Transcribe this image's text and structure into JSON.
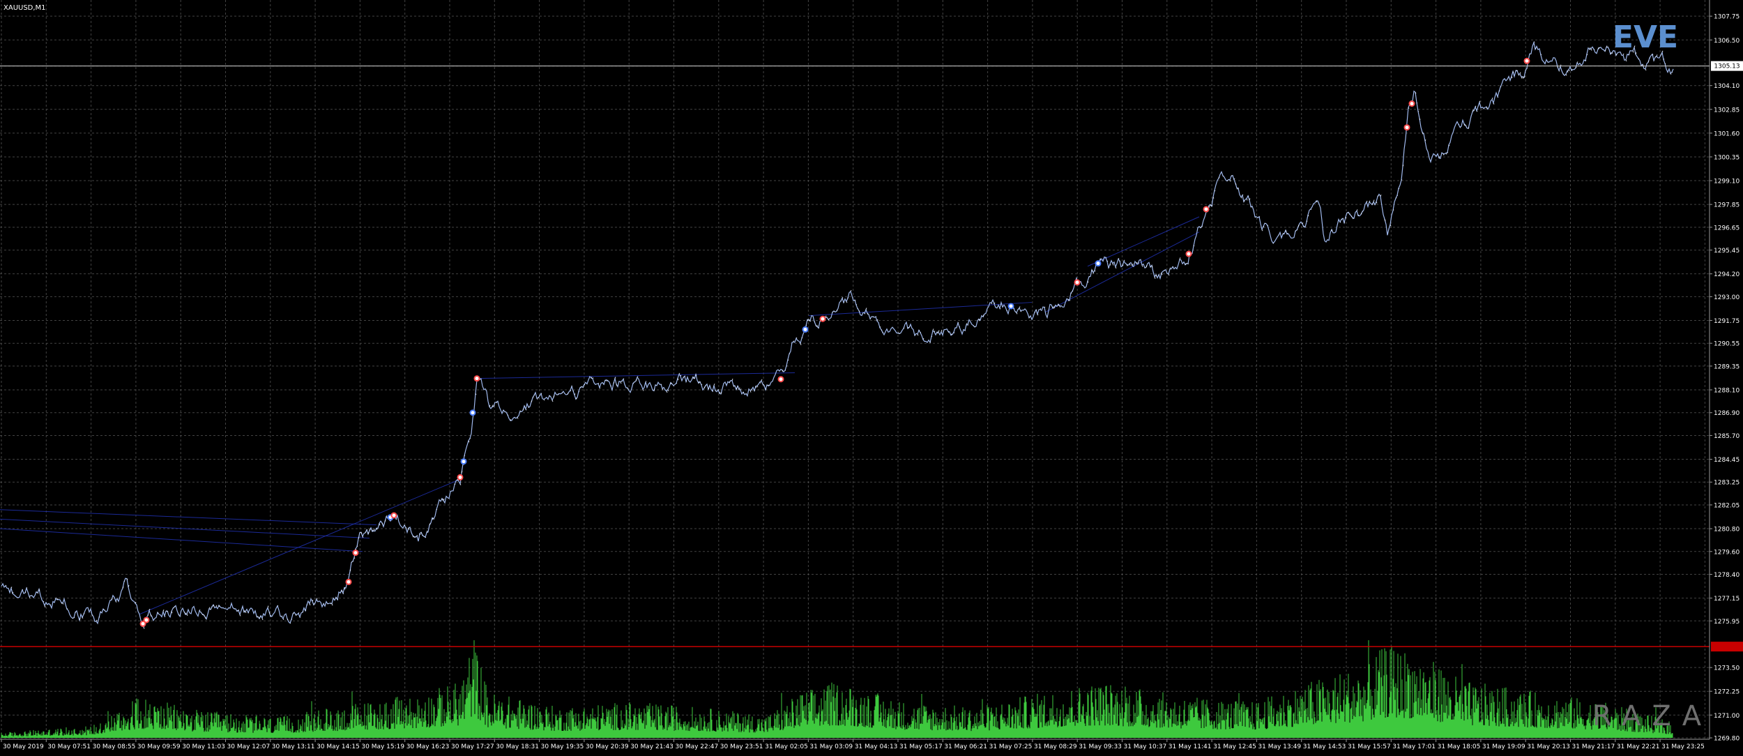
{
  "chart_data": {
    "type": "line",
    "title": "XAUUSD,M1",
    "watermark_top": "EVE",
    "watermark_bottom": "RAZA",
    "current_price_label": "1305.13",
    "ask_line_price": 1305.13,
    "level_line_price": 1274.6,
    "y_range": [
      1269.8,
      1308.6
    ],
    "y_ticks": [
      "1307.75",
      "1306.50",
      "1305.13",
      "1304.10",
      "1302.85",
      "1301.60",
      "1300.35",
      "1299.10",
      "1297.85",
      "1296.65",
      "1295.45",
      "1294.20",
      "1293.00",
      "1291.75",
      "1290.55",
      "1289.35",
      "1288.10",
      "1286.90",
      "1285.70",
      "1284.45",
      "1283.25",
      "1282.05",
      "1280.80",
      "1279.60",
      "1278.40",
      "1277.15",
      "1275.95",
      "1273.50",
      "1272.25",
      "1271.00",
      "1269.80"
    ],
    "x_labels": [
      "30 May 2019",
      "30 May 07:51",
      "30 May 08:55",
      "30 May 09:59",
      "30 May 11:03",
      "30 May 12:07",
      "30 May 13:11",
      "30 May 14:15",
      "30 May 15:19",
      "30 May 16:23",
      "30 May 17:27",
      "30 May 18:31",
      "30 May 19:35",
      "30 May 20:39",
      "30 May 21:43",
      "30 May 22:47",
      "30 May 23:51",
      "31 May 02:05",
      "31 May 03:09",
      "31 May 04:13",
      "31 May 05:17",
      "31 May 06:21",
      "31 May 07:25",
      "31 May 08:29",
      "31 May 09:33",
      "31 May 10:37",
      "31 May 11:41",
      "31 May 12:45",
      "31 May 13:49",
      "31 May 14:53",
      "31 May 15:57",
      "31 May 17:01",
      "31 May 18:05",
      "31 May 19:09",
      "31 May 20:13",
      "31 May 21:17",
      "31 May 22:21",
      "31 May 23:25"
    ],
    "price_anchors": [
      [
        0,
        1277.6
      ],
      [
        80,
        1277.1
      ],
      [
        140,
        1276.0
      ],
      [
        180,
        1277.8
      ],
      [
        205,
        1275.8
      ],
      [
        215,
        1276.2
      ],
      [
        260,
        1276.4
      ],
      [
        320,
        1276.8
      ],
      [
        380,
        1276.2
      ],
      [
        420,
        1276.3
      ],
      [
        470,
        1277.0
      ],
      [
        500,
        1278.0
      ],
      [
        515,
        1280.3
      ],
      [
        540,
        1281.0
      ],
      [
        570,
        1281.6
      ],
      [
        600,
        1280.3
      ],
      [
        630,
        1282.0
      ],
      [
        660,
        1283.5
      ],
      [
        675,
        1286.0
      ],
      [
        685,
        1289.0
      ],
      [
        700,
        1287.5
      ],
      [
        740,
        1287.0
      ],
      [
        780,
        1287.4
      ],
      [
        820,
        1287.9
      ],
      [
        860,
        1288.4
      ],
      [
        900,
        1288.6
      ],
      [
        940,
        1288.4
      ],
      [
        980,
        1288.8
      ],
      [
        1020,
        1288.2
      ],
      [
        1060,
        1288.4
      ],
      [
        1100,
        1288.5
      ],
      [
        1125,
        1288.7
      ],
      [
        1140,
        1290.6
      ],
      [
        1160,
        1291.5
      ],
      [
        1190,
        1292.0
      ],
      [
        1220,
        1292.8
      ],
      [
        1250,
        1292.0
      ],
      [
        1290,
        1291.2
      ],
      [
        1330,
        1290.9
      ],
      [
        1360,
        1291.3
      ],
      [
        1400,
        1291.8
      ],
      [
        1440,
        1292.6
      ],
      [
        1470,
        1292.3
      ],
      [
        1500,
        1292.0
      ],
      [
        1530,
        1293.5
      ],
      [
        1560,
        1294.0
      ],
      [
        1580,
        1295.0
      ],
      [
        1600,
        1294.5
      ],
      [
        1630,
        1294.8
      ],
      [
        1660,
        1294.0
      ],
      [
        1690,
        1294.5
      ],
      [
        1710,
        1295.5
      ],
      [
        1730,
        1297.6
      ],
      [
        1750,
        1299.0
      ],
      [
        1770,
        1299.0
      ],
      [
        1790,
        1298.0
      ],
      [
        1810,
        1296.5
      ],
      [
        1840,
        1296.0
      ],
      [
        1870,
        1297.0
      ],
      [
        1890,
        1298.3
      ],
      [
        1900,
        1296.0
      ],
      [
        1920,
        1297.0
      ],
      [
        1950,
        1297.5
      ],
      [
        1980,
        1298.0
      ],
      [
        1990,
        1296.0
      ],
      [
        2010,
        1299.5
      ],
      [
        2020,
        1302.5
      ],
      [
        2030,
        1303.8
      ],
      [
        2045,
        1301.0
      ],
      [
        2065,
        1300.0
      ],
      [
        2090,
        1301.8
      ],
      [
        2120,
        1302.6
      ],
      [
        2150,
        1303.7
      ],
      [
        2170,
        1304.5
      ],
      [
        2185,
        1305.0
      ],
      [
        2200,
        1306.2
      ],
      [
        2220,
        1305.3
      ],
      [
        2240,
        1305.0
      ],
      [
        2260,
        1305.3
      ],
      [
        2280,
        1306.3
      ],
      [
        2300,
        1305.9
      ],
      [
        2320,
        1306.0
      ],
      [
        2340,
        1305.7
      ],
      [
        2360,
        1305.5
      ],
      [
        2380,
        1305.3
      ],
      [
        2400,
        1305.1
      ]
    ],
    "volume_anchors": [
      [
        0,
        0.05
      ],
      [
        130,
        0.12
      ],
      [
        200,
        0.4
      ],
      [
        300,
        0.25
      ],
      [
        400,
        0.2
      ],
      [
        520,
        0.35
      ],
      [
        600,
        0.42
      ],
      [
        660,
        0.55
      ],
      [
        680,
        1.0
      ],
      [
        700,
        0.45
      ],
      [
        800,
        0.3
      ],
      [
        900,
        0.35
      ],
      [
        1000,
        0.3
      ],
      [
        1100,
        0.22
      ],
      [
        1150,
        0.45
      ],
      [
        1200,
        0.55
      ],
      [
        1300,
        0.35
      ],
      [
        1400,
        0.3
      ],
      [
        1500,
        0.45
      ],
      [
        1580,
        0.55
      ],
      [
        1700,
        0.4
      ],
      [
        1800,
        0.35
      ],
      [
        1900,
        0.6
      ],
      [
        1950,
        0.7
      ],
      [
        1990,
        0.9
      ],
      [
        2030,
        0.85
      ],
      [
        2100,
        0.55
      ],
      [
        2200,
        0.45
      ],
      [
        2300,
        0.35
      ],
      [
        2400,
        0.15
      ]
    ],
    "colors": {
      "background": "#000000",
      "grid": "#5a5a5a",
      "price_line": "#9fb8ec",
      "price_line_up": "#e8f0ff",
      "volume": "#3ec93e",
      "level_line": "#c80000",
      "ask_line": "#d6d6d6",
      "watermark_top": "#5b8fcf",
      "watermark_bottom": "#6f6f6f",
      "axis_text": "#ffffff",
      "trend_lines": "#1f2fa8"
    }
  }
}
